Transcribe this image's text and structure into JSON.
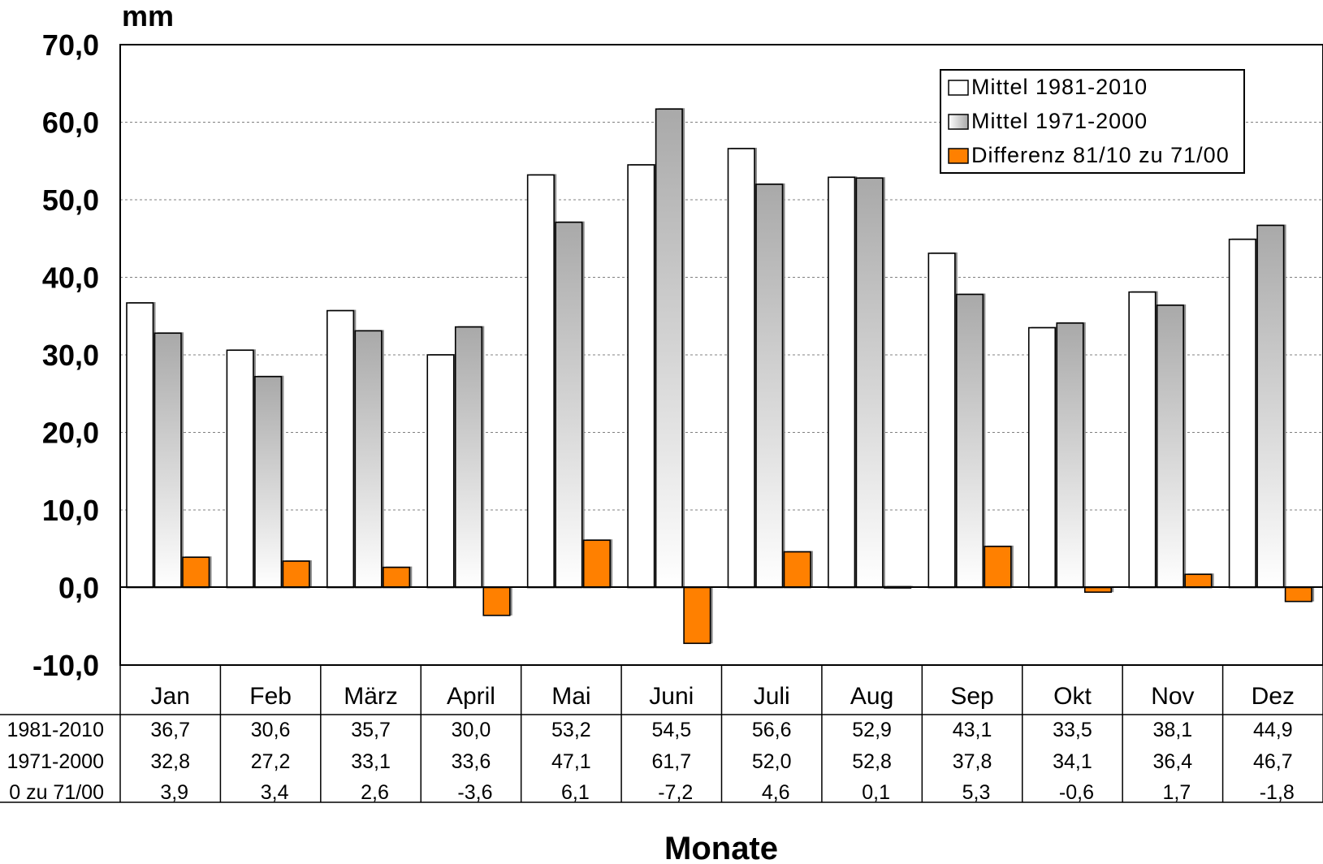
{
  "chart_data": {
    "type": "bar",
    "unit_label": "mm",
    "xlabel": "Monate",
    "ylabel": "",
    "ylim": [
      -10,
      70
    ],
    "y_ticks": [
      "70,0",
      "60,0",
      "50,0",
      "40,0",
      "30,0",
      "20,0",
      "10,0",
      "0,0",
      "-10,0"
    ],
    "grid": true,
    "legend_position": "top-right",
    "categories": [
      "Jan",
      "Feb",
      "März",
      "April",
      "Mai",
      "Juni",
      "Juli",
      "Aug",
      "Sep",
      "Okt",
      "Nov",
      "Dez"
    ],
    "series": [
      {
        "name": "Mittel 1981-2010",
        "table_label": "1981-2010",
        "color": "#ffffff",
        "values": [
          36.7,
          30.6,
          35.7,
          30.0,
          53.2,
          54.5,
          56.6,
          52.9,
          43.1,
          33.5,
          38.1,
          44.9
        ],
        "labels": [
          "36,7",
          "30,6",
          "35,7",
          "30,0",
          "53,2",
          "54,5",
          "56,6",
          "52,9",
          "43,1",
          "33,5",
          "38,1",
          "44,9"
        ]
      },
      {
        "name": "Mittel 1971-2000",
        "table_label": "1971-2000",
        "color": "#b0b0b0",
        "values": [
          32.8,
          27.2,
          33.1,
          33.6,
          47.1,
          61.7,
          52.0,
          52.8,
          37.8,
          34.1,
          36.4,
          46.7
        ],
        "labels": [
          "32,8",
          "27,2",
          "33,1",
          "33,6",
          "47,1",
          "61,7",
          "52,0",
          "52,8",
          "37,8",
          "34,1",
          "36,4",
          "46,7"
        ]
      },
      {
        "name": "Differenz 81/10 zu 71/00",
        "table_label": "0 zu 71/00",
        "color": "#ff8000",
        "values": [
          3.9,
          3.4,
          2.6,
          -3.6,
          6.1,
          -7.2,
          4.6,
          0.1,
          5.3,
          -0.6,
          1.7,
          -1.8
        ],
        "labels": [
          "3,9",
          "3,4",
          "2,6",
          "-3,6",
          "6,1",
          "-7,2",
          "4,6",
          "0,1",
          "5,3",
          "-0,6",
          "1,7",
          "-1,8"
        ]
      }
    ]
  }
}
